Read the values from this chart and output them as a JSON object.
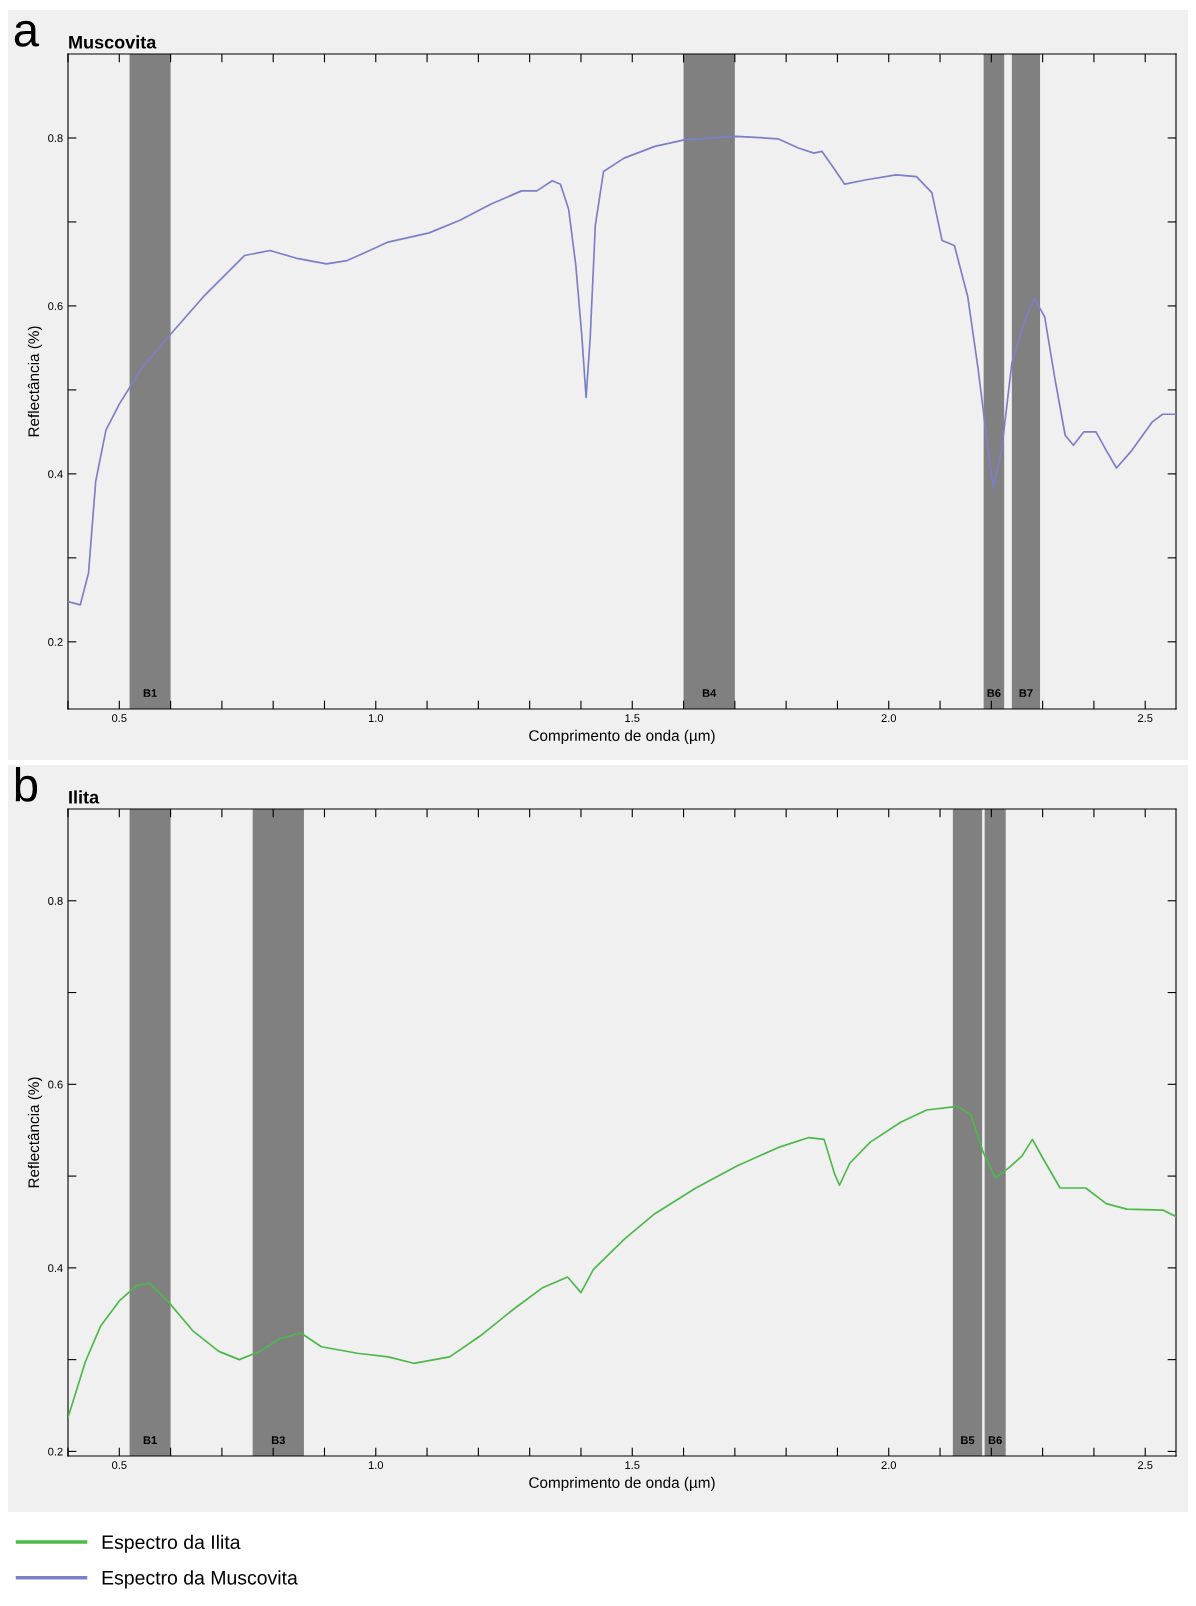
{
  "chart_data": [
    {
      "type": "line",
      "title": "Muscovita",
      "xlabel": "Comprimento de onda (µm)",
      "ylabel": "Reflectância (%)",
      "annotations": [
        "a"
      ],
      "legend": "bottom",
      "xlim": [
        0.4,
        2.56
      ],
      "ylim": [
        0.12,
        0.9
      ],
      "xticks": [
        {
          "value": 0.4,
          "label": null
        },
        0.5,
        {
          "value": 0.6,
          "label": null
        },
        {
          "value": 0.7,
          "label": null
        },
        {
          "value": 0.8,
          "label": null
        },
        {
          "value": 0.9,
          "label": null
        },
        {
          "value": 1.0,
          "label": "1.0"
        },
        {
          "value": 1.1,
          "label": null
        },
        {
          "value": 1.2,
          "label": null
        },
        {
          "value": 1.3,
          "label": null
        },
        {
          "value": 1.4,
          "label": null
        },
        1.5,
        {
          "value": 1.6,
          "label": null
        },
        {
          "value": 1.7,
          "label": null
        },
        {
          "value": 1.8,
          "label": null
        },
        {
          "value": 1.9,
          "label": null
        },
        {
          "value": 2.0,
          "label": "2.0"
        },
        {
          "value": 2.1,
          "label": null
        },
        {
          "value": 2.2,
          "label": null
        },
        {
          "value": 2.3,
          "label": null
        },
        {
          "value": 2.4,
          "label": null
        },
        2.5
      ],
      "yticks": [
        0.2,
        {
          "value": 0.3,
          "label": null
        },
        0.4,
        {
          "value": 0.5,
          "label": null
        },
        0.6,
        {
          "value": 0.7,
          "label": null
        },
        0.8
      ],
      "bands": [
        {
          "axis": "x",
          "from": 0.52,
          "to": 0.6,
          "label": "B1",
          "color": "#808080"
        },
        {
          "axis": "x",
          "from": 1.6,
          "to": 1.7,
          "label": "B4",
          "color": "#808080"
        },
        {
          "axis": "x",
          "from": 2.185,
          "to": 2.225,
          "label": "B6",
          "color": "#808080"
        },
        {
          "axis": "x",
          "from": 2.24,
          "to": 2.295,
          "label": "B7",
          "color": "#808080"
        }
      ],
      "series": [
        {
          "name": "Espectro da Muscovita",
          "color": "#7b7fc8",
          "x": [
            0.4,
            0.424,
            0.44,
            0.454,
            0.474,
            0.5,
            0.544,
            0.594,
            0.664,
            0.744,
            0.794,
            0.844,
            0.904,
            0.944,
            0.974,
            1.024,
            1.104,
            1.164,
            1.224,
            1.284,
            1.314,
            1.344,
            1.36,
            1.376,
            1.39,
            1.402,
            1.41,
            1.418,
            1.428,
            1.444,
            1.484,
            1.544,
            1.604,
            1.704,
            1.784,
            1.824,
            1.854,
            1.87,
            1.894,
            1.914,
            1.954,
            2.014,
            2.054,
            2.084,
            2.104,
            2.128,
            2.154,
            2.174,
            2.194,
            2.204,
            2.22,
            2.24,
            2.264,
            2.284,
            2.304,
            2.324,
            2.344,
            2.36,
            2.38,
            2.404,
            2.424,
            2.444,
            2.474,
            2.514,
            2.534,
            2.56
          ],
          "values": [
            0.248,
            0.244,
            0.282,
            0.391,
            0.452,
            0.483,
            0.526,
            0.562,
            0.611,
            0.66,
            0.666,
            0.657,
            0.65,
            0.654,
            0.662,
            0.676,
            0.687,
            0.702,
            0.721,
            0.737,
            0.737,
            0.749,
            0.745,
            0.715,
            0.648,
            0.562,
            0.491,
            0.562,
            0.696,
            0.76,
            0.776,
            0.79,
            0.798,
            0.802,
            0.799,
            0.788,
            0.782,
            0.784,
            0.763,
            0.745,
            0.75,
            0.756,
            0.754,
            0.735,
            0.678,
            0.672,
            0.611,
            0.526,
            0.428,
            0.384,
            0.428,
            0.532,
            0.581,
            0.609,
            0.587,
            0.513,
            0.446,
            0.434,
            0.45,
            0.45,
            0.428,
            0.407,
            0.428,
            0.462,
            0.471,
            0.471
          ]
        }
      ]
    },
    {
      "type": "line",
      "title": "Ilita",
      "xlabel": "Comprimento de onda (µm)",
      "ylabel": "Reflectância (%)",
      "annotations": [
        "b"
      ],
      "legend": "bottom",
      "xlim": [
        0.4,
        2.56
      ],
      "ylim": [
        0.195,
        0.9
      ],
      "xticks": [
        {
          "value": 0.4,
          "label": null
        },
        0.5,
        {
          "value": 0.6,
          "label": null
        },
        {
          "value": 0.7,
          "label": null
        },
        {
          "value": 0.8,
          "label": null
        },
        {
          "value": 0.9,
          "label": null
        },
        {
          "value": 1.0,
          "label": "1.0"
        },
        {
          "value": 1.1,
          "label": null
        },
        {
          "value": 1.2,
          "label": null
        },
        {
          "value": 1.3,
          "label": null
        },
        {
          "value": 1.4,
          "label": null
        },
        1.5,
        {
          "value": 1.6,
          "label": null
        },
        {
          "value": 1.7,
          "label": null
        },
        {
          "value": 1.8,
          "label": null
        },
        {
          "value": 1.9,
          "label": null
        },
        {
          "value": 2.0,
          "label": "2.0"
        },
        {
          "value": 2.1,
          "label": null
        },
        {
          "value": 2.2,
          "label": null
        },
        {
          "value": 2.3,
          "label": null
        },
        {
          "value": 2.4,
          "label": null
        },
        2.5
      ],
      "yticks": [
        0.2,
        {
          "value": 0.3,
          "label": null
        },
        0.4,
        {
          "value": 0.5,
          "label": null
        },
        0.6,
        {
          "value": 0.7,
          "label": null
        },
        0.8
      ],
      "bands": [
        {
          "axis": "x",
          "from": 0.52,
          "to": 0.6,
          "label": "B1",
          "color": "#808080"
        },
        {
          "axis": "x",
          "from": 0.76,
          "to": 0.86,
          "label": "B3",
          "color": "#808080"
        },
        {
          "axis": "x",
          "from": 2.125,
          "to": 2.182,
          "label": "B5",
          "color": "#808080"
        },
        {
          "axis": "x",
          "from": 2.187,
          "to": 2.228,
          "label": "B6",
          "color": "#808080"
        }
      ],
      "series": [
        {
          "name": "Espectro da Ilita",
          "color": "#4cb84a",
          "x": [
            0.4,
            0.434,
            0.464,
            0.5,
            0.534,
            0.56,
            0.594,
            0.644,
            0.694,
            0.734,
            0.774,
            0.814,
            0.854,
            0.894,
            0.964,
            1.024,
            1.074,
            1.144,
            1.204,
            1.264,
            1.324,
            1.374,
            1.4,
            1.424,
            1.484,
            1.544,
            1.624,
            1.704,
            1.784,
            1.844,
            1.874,
            1.894,
            1.904,
            1.924,
            1.964,
            2.024,
            2.074,
            2.134,
            2.16,
            2.184,
            2.208,
            2.234,
            2.26,
            2.28,
            2.3,
            2.334,
            2.384,
            2.424,
            2.464,
            2.534,
            2.56
          ],
          "values": [
            0.237,
            0.298,
            0.337,
            0.364,
            0.381,
            0.383,
            0.364,
            0.331,
            0.309,
            0.3,
            0.309,
            0.323,
            0.329,
            0.314,
            0.307,
            0.303,
            0.296,
            0.303,
            0.326,
            0.353,
            0.378,
            0.39,
            0.373,
            0.398,
            0.431,
            0.459,
            0.487,
            0.511,
            0.531,
            0.542,
            0.54,
            0.503,
            0.49,
            0.514,
            0.537,
            0.559,
            0.572,
            0.576,
            0.567,
            0.526,
            0.498,
            0.509,
            0.522,
            0.54,
            0.52,
            0.487,
            0.487,
            0.47,
            0.464,
            0.463,
            0.456
          ]
        }
      ]
    }
  ]
}
